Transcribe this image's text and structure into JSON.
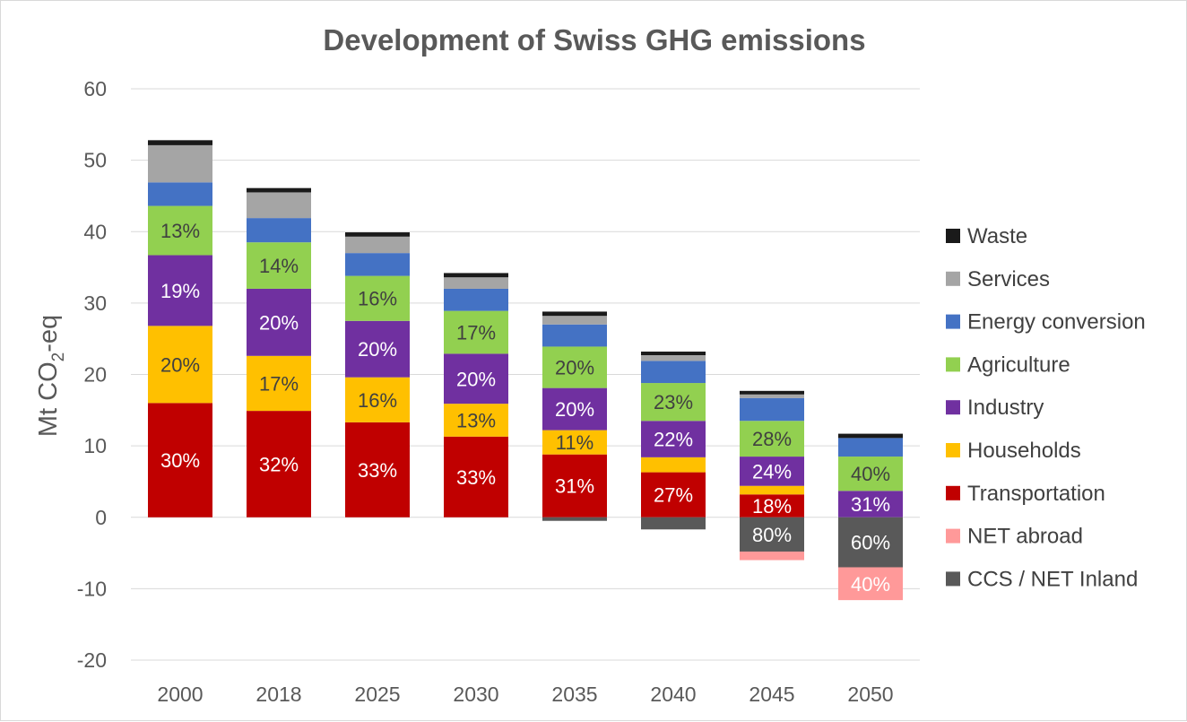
{
  "chart_data": {
    "type": "bar",
    "stacked": true,
    "title": "Development of Swiss GHG emissions",
    "ylabel": "Mt CO2-eq",
    "ylabel_parts": {
      "main": "Mt CO",
      "sub": "2",
      "tail": "-eq"
    },
    "xlabel": "",
    "ylim": [
      -20,
      60
    ],
    "yticks": [
      -20,
      -10,
      0,
      10,
      20,
      30,
      40,
      50,
      60
    ],
    "grid": true,
    "legend_position": "right",
    "categories": [
      "2000",
      "2018",
      "2025",
      "2030",
      "2035",
      "2040",
      "2045",
      "2050"
    ],
    "series": [
      {
        "name": "Transportation",
        "color": "#c00000",
        "label_color": "#ffffff",
        "values": [
          16.0,
          14.9,
          13.3,
          11.3,
          8.8,
          6.3,
          3.2,
          0
        ],
        "labels": [
          "30%",
          "32%",
          "33%",
          "33%",
          "31%",
          "27%",
          "18%",
          ""
        ]
      },
      {
        "name": "Households",
        "color": "#ffc000",
        "label_color": "#404040",
        "values": [
          10.8,
          7.7,
          6.3,
          4.6,
          3.4,
          2.1,
          1.2,
          0
        ],
        "labels": [
          "20%",
          "17%",
          "16%",
          "13%",
          "11%",
          "",
          "",
          ""
        ]
      },
      {
        "name": "Industry",
        "color": "#7030a0",
        "label_color": "#ffffff",
        "values": [
          9.9,
          9.4,
          7.9,
          7.0,
          5.9,
          5.1,
          4.1,
          3.7
        ],
        "labels": [
          "19%",
          "20%",
          "20%",
          "20%",
          "20%",
          "22%",
          "24%",
          "31%"
        ]
      },
      {
        "name": "Agriculture",
        "color": "#92d050",
        "label_color": "#404040",
        "values": [
          6.9,
          6.5,
          6.3,
          6.0,
          5.8,
          5.3,
          5.0,
          4.8
        ],
        "labels": [
          "13%",
          "14%",
          "16%",
          "17%",
          "20%",
          "23%",
          "28%",
          "40%"
        ]
      },
      {
        "name": "Energy conversion",
        "color": "#4472c4",
        "label_color": "#ffffff",
        "values": [
          3.3,
          3.4,
          3.2,
          3.1,
          3.1,
          3.1,
          3.2,
          2.6
        ],
        "labels": [
          "",
          "",
          "",
          "",
          "",
          "",
          "",
          ""
        ]
      },
      {
        "name": "Services",
        "color": "#a5a5a5",
        "label_color": "#404040",
        "values": [
          5.2,
          3.6,
          2.3,
          1.6,
          1.2,
          0.8,
          0.5,
          0
        ],
        "labels": [
          "",
          "",
          "",
          "",
          "",
          "",
          "",
          ""
        ]
      },
      {
        "name": "Waste",
        "color": "#1a1a1a",
        "label_color": "#ffffff",
        "values": [
          0.7,
          0.6,
          0.6,
          0.6,
          0.6,
          0.5,
          0.5,
          0.6
        ],
        "labels": [
          "",
          "",
          "",
          "",
          "",
          "",
          "",
          ""
        ]
      },
      {
        "name": "CCS / NET Inland",
        "color": "#595959",
        "label_color": "#ffffff",
        "values": [
          0,
          0,
          0,
          0,
          -0.5,
          -1.7,
          -4.8,
          -7.0
        ],
        "labels": [
          "",
          "",
          "",
          "",
          "",
          "",
          "80%",
          "60%"
        ]
      },
      {
        "name": "NET abroad",
        "color": "#ff9999",
        "label_color": "#ffffff",
        "values": [
          0,
          0,
          0,
          0,
          0,
          0,
          -1.2,
          -4.6
        ],
        "labels": [
          "",
          "",
          "",
          "",
          "",
          "",
          "",
          "40%"
        ]
      }
    ],
    "legend_order": [
      "Waste",
      "Services",
      "Energy conversion",
      "Agriculture",
      "Industry",
      "Households",
      "Transportation",
      "NET abroad",
      "CCS / NET Inland"
    ]
  }
}
